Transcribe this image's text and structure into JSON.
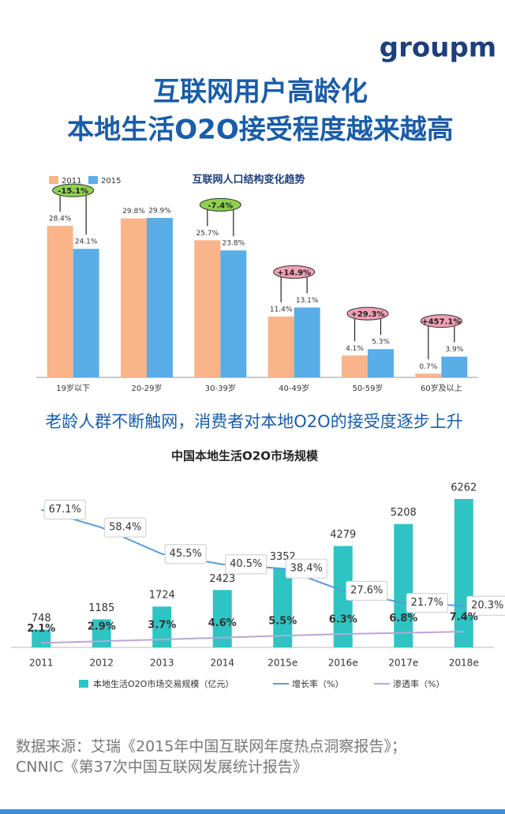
{
  "header": {
    "logo": "groupm",
    "title_lines": [
      "互联网用户高龄化",
      "本地生活O2O接受程度越来越高"
    ],
    "subtitle": "老龄人群不断触网，消费者对本地O2O的接受度逐步上升"
  },
  "chart_data": [
    {
      "type": "bar",
      "title": "互联网人口结构变化趋势",
      "categories": [
        "19岁以下",
        "20-29岁",
        "30-39岁",
        "40-49岁",
        "50-59岁",
        "60岁及以上"
      ],
      "series": [
        {
          "name": "2011",
          "color": "#f9b48a",
          "values": [
            28.4,
            29.8,
            25.7,
            11.4,
            4.1,
            0.7
          ],
          "value_labels": [
            "28.4%",
            "29.8%",
            "25.7%",
            "11.4%",
            "4.1%",
            "0.7%"
          ]
        },
        {
          "name": "2015",
          "color": "#5aaee8",
          "values": [
            24.1,
            29.9,
            23.8,
            13.1,
            5.3,
            3.9
          ],
          "value_labels": [
            "24.1%",
            "29.9%",
            "23.8%",
            "13.1%",
            "5.3%",
            "3.9%"
          ]
        }
      ],
      "annotations": [
        "-15.1%",
        null,
        "-7.4%",
        "+14.9%",
        "+29.3%",
        "+457.1%"
      ]
    },
    {
      "type": "combo",
      "title": "中国本地生活O2O市场规模",
      "categories": [
        "2011",
        "2012",
        "2013",
        "2014",
        "2015e",
        "2016e",
        "2017e",
        "2018e"
      ],
      "series": [
        {
          "name": "本地生活O2O市场交易规模（亿元）",
          "color": "#2ec4c4",
          "kind": "bar",
          "values": [
            748,
            1185,
            1724,
            2423,
            3352,
            4279,
            5208,
            6262
          ]
        },
        {
          "name": "增长率（%）",
          "color": "#5b9bd5",
          "kind": "line",
          "values": [
            67.1,
            58.4,
            45.5,
            40.5,
            38.4,
            27.6,
            21.7,
            20.3
          ],
          "value_labels": [
            "67.1%",
            "58.4%",
            "45.5%",
            "40.5%",
            "38.4%",
            "27.6%",
            "21.7%",
            "20.3%"
          ]
        },
        {
          "name": "渗透率（%）",
          "color": "#b9a6d6",
          "kind": "line",
          "values": [
            2.1,
            2.9,
            3.7,
            4.6,
            5.5,
            6.3,
            6.8,
            7.4
          ],
          "value_labels": [
            "2.1%",
            "2.9%",
            "3.7%",
            "4.6%",
            "5.5%",
            "6.3%",
            "6.8%",
            "7.4%"
          ]
        }
      ]
    }
  ],
  "source": [
    "数据来源：艾瑞《2015年中国互联网年度热点洞察报告》；",
    "CNNIC《第37次中国互联网发展统计报告》"
  ]
}
